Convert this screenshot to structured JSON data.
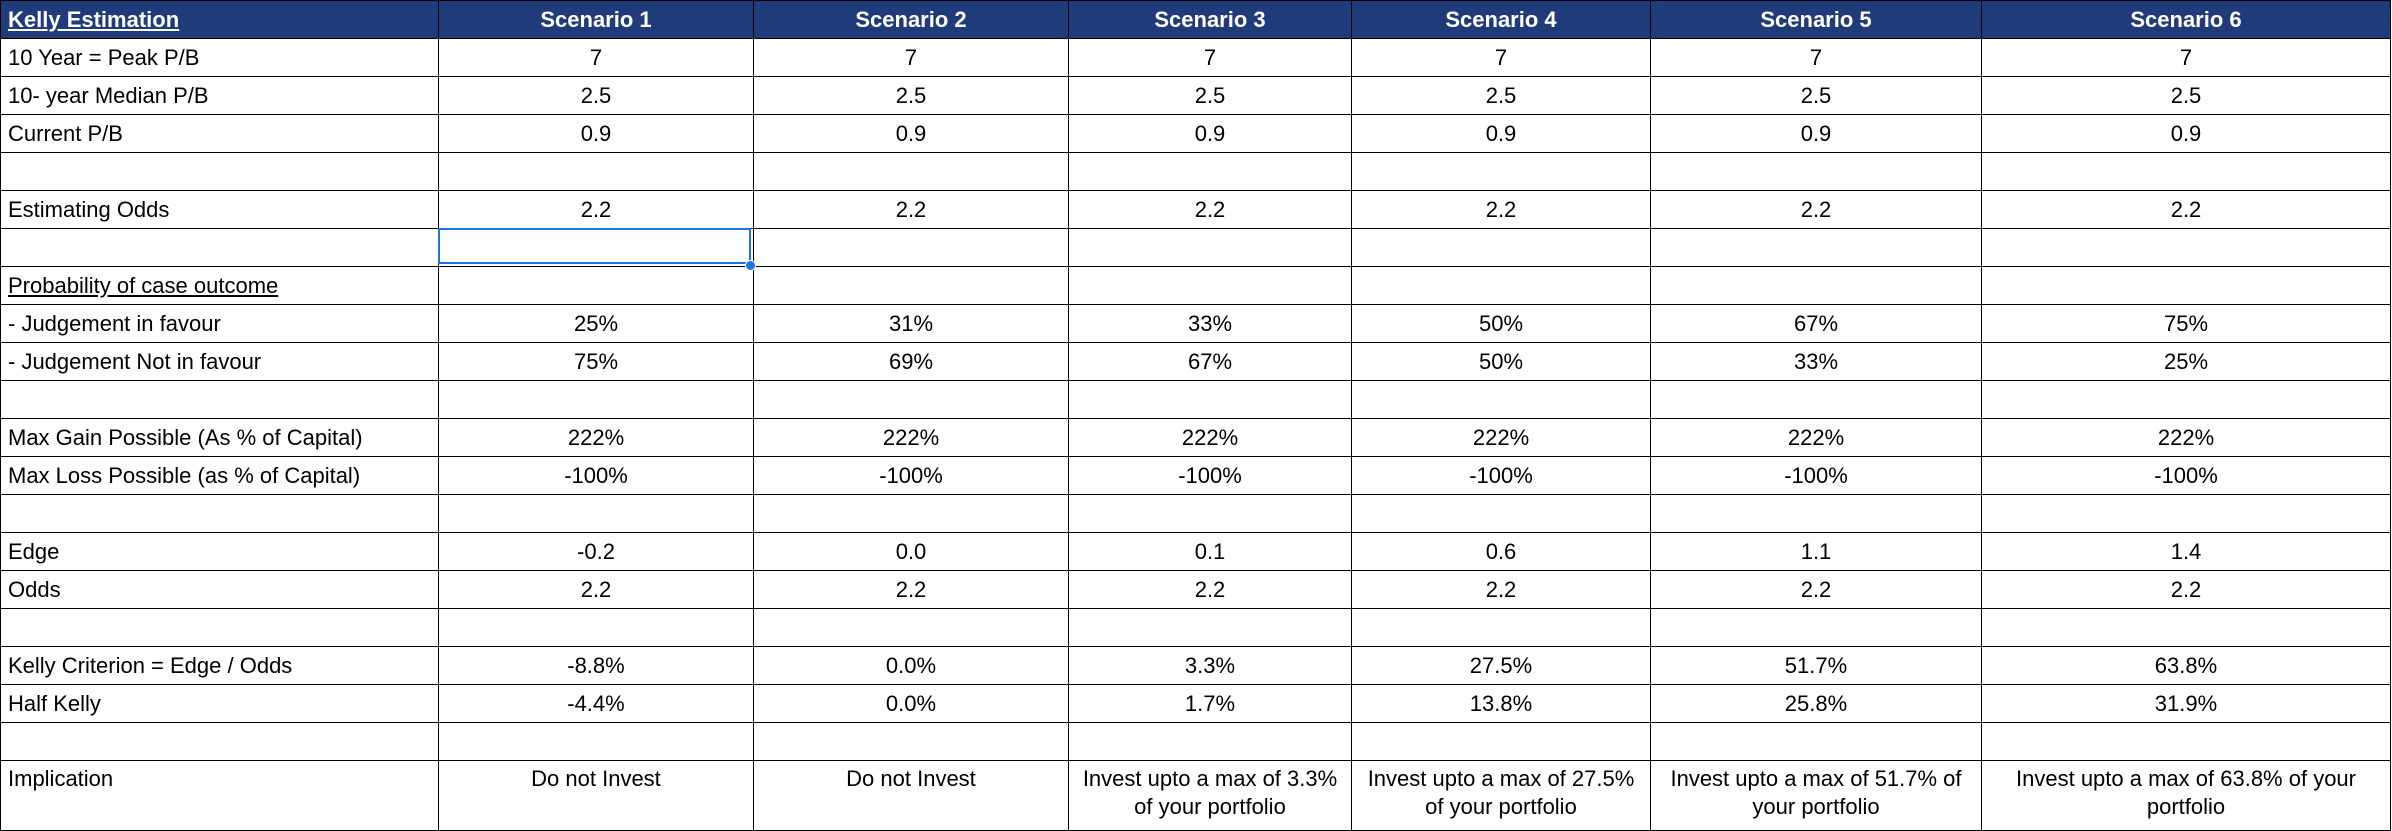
{
  "header": {
    "title": "Kelly Estimation",
    "scenarios": [
      "Scenario 1",
      "Scenario 2",
      "Scenario 3",
      "Scenario 4",
      "Scenario 5",
      "Scenario 6"
    ]
  },
  "rows": {
    "peak_pb": {
      "label": "10 Year = Peak P/B",
      "values": [
        "7",
        "7",
        "7",
        "7",
        "7",
        "7"
      ]
    },
    "median_pb": {
      "label": "10- year Median P/B",
      "values": [
        "2.5",
        "2.5",
        "2.5",
        "2.5",
        "2.5",
        "2.5"
      ]
    },
    "current_pb": {
      "label": "Current P/B",
      "values": [
        "0.9",
        "0.9",
        "0.9",
        "0.9",
        "0.9",
        "0.9"
      ]
    },
    "estimating_odds": {
      "label": "Estimating Odds",
      "values": [
        "2.2",
        "2.2",
        "2.2",
        "2.2",
        "2.2",
        "2.2"
      ]
    },
    "probability_heading": {
      "label": "Probability of case outcome"
    },
    "judgement_favour": {
      "label": "- Judgement in favour",
      "values": [
        "25%",
        "31%",
        "33%",
        "50%",
        "67%",
        "75%"
      ]
    },
    "judgement_not_favour": {
      "label": "- Judgement Not in favour",
      "values": [
        "75%",
        "69%",
        "67%",
        "50%",
        "33%",
        "25%"
      ]
    },
    "max_gain": {
      "label": "Max Gain Possible (As % of Capital)",
      "values": [
        "222%",
        "222%",
        "222%",
        "222%",
        "222%",
        "222%"
      ]
    },
    "max_loss": {
      "label": "Max Loss Possible (as % of Capital)",
      "values": [
        "-100%",
        "-100%",
        "-100%",
        "-100%",
        "-100%",
        "-100%"
      ]
    },
    "edge": {
      "label": "Edge",
      "values": [
        "-0.2",
        "0.0",
        "0.1",
        "0.6",
        "1.1",
        "1.4"
      ]
    },
    "odds": {
      "label": "Odds",
      "values": [
        "2.2",
        "2.2",
        "2.2",
        "2.2",
        "2.2",
        "2.2"
      ]
    },
    "kelly": {
      "label": "Kelly Criterion = Edge / Odds",
      "values": [
        "-8.8%",
        "0.0%",
        "3.3%",
        "27.5%",
        "51.7%",
        "63.8%"
      ]
    },
    "half_kelly": {
      "label": "Half Kelly",
      "values": [
        "-4.4%",
        "0.0%",
        "1.7%",
        "13.8%",
        "25.8%",
        "31.9%"
      ]
    },
    "implication": {
      "label": "Implication",
      "values": [
        "Do not Invest",
        "Do not Invest",
        "Invest upto a max of 3.3% of your portfolio",
        "Invest upto a max of 27.5% of your portfolio",
        "Invest upto a max of 51.7% of your portfolio",
        "Invest upto a max of 63.8% of your portfolio"
      ]
    }
  },
  "colors": {
    "header_bg": "#1f3b7a",
    "header_text": "#ffffff",
    "selection": "#1a73e8"
  }
}
